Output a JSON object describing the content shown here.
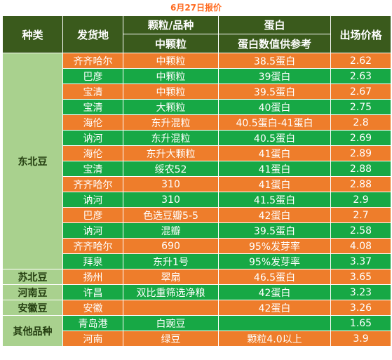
{
  "title": "6月27日报价",
  "header": {
    "category": "种类",
    "origin": "发货地",
    "grain_top": "颗粒/品种",
    "grain_bottom": "中颗粒",
    "protein_top": "蛋白",
    "protein_bottom": "蛋白数值供参考",
    "price": "出场价格"
  },
  "categories": [
    "东北豆",
    "苏北豆",
    "河南豆",
    "安徽豆",
    "其他品种"
  ],
  "rows": [
    {
      "origin": "齐齐哈尔",
      "grain": "中颗粒",
      "protein": "38.5蛋白",
      "price": "2.62"
    },
    {
      "origin": "巴彦",
      "grain": "中颗粒",
      "protein": "39蛋白",
      "price": "2.63"
    },
    {
      "origin": "宝清",
      "grain": "中颗粒",
      "protein": "39.5蛋白",
      "price": "2.67"
    },
    {
      "origin": "宝清",
      "grain": "大颗粒",
      "protein": "40蛋白",
      "price": "2.75"
    },
    {
      "origin": "海伦",
      "grain": "东升混粒",
      "protein": "40.5蛋白-41蛋白",
      "price": "2.8"
    },
    {
      "origin": "讷河",
      "grain": "东升混粒",
      "protein": "40.5蛋白",
      "price": "2.69"
    },
    {
      "origin": "海伦",
      "grain": "东升大颗粒",
      "protein": "41蛋白",
      "price": "2.89"
    },
    {
      "origin": "宝清",
      "grain": "绥农52",
      "protein": "41蛋白",
      "price": "2.88"
    },
    {
      "origin": "齐齐哈尔",
      "grain": "310",
      "protein": "41蛋白",
      "price": "2.88"
    },
    {
      "origin": "讷河",
      "grain": "310",
      "protein": "41.5蛋白",
      "price": "2.9"
    },
    {
      "origin": "巴彦",
      "grain": "色选豆瓣5-5",
      "protein": "42蛋白",
      "price": "2.7"
    },
    {
      "origin": "讷河",
      "grain": "混瓣",
      "protein": "39.5蛋白",
      "price": "2.58"
    },
    {
      "origin": "齐齐哈尔",
      "grain": "690",
      "protein": "95%发芽率",
      "price": "4.08"
    },
    {
      "origin": "拜泉",
      "grain": "东升1号",
      "protein": "95%发芽率",
      "price": "3.37"
    },
    {
      "origin": "扬州",
      "grain": "翠扇",
      "protein": "46.5蛋白",
      "price": "3.65"
    },
    {
      "origin": "许昌",
      "grain": "双比重筛选净粮",
      "protein": "42蛋白",
      "price": "3.23"
    },
    {
      "origin": "安徽",
      "grain": "",
      "protein": "42蛋白",
      "price": "3.26"
    },
    {
      "origin": "青岛港",
      "grain": "白豌豆",
      "protein": "",
      "price": "1.65"
    },
    {
      "origin": "河南",
      "grain": "绿豆",
      "protein": "颗粒4.0以上",
      "price": "3.9"
    }
  ],
  "colors": {
    "header_bg": "#3a5a1c",
    "category_bg": "#a9d18e",
    "row_orange": "#ee7d2b",
    "row_green": "#17a845",
    "title": "#ff6a1f"
  }
}
